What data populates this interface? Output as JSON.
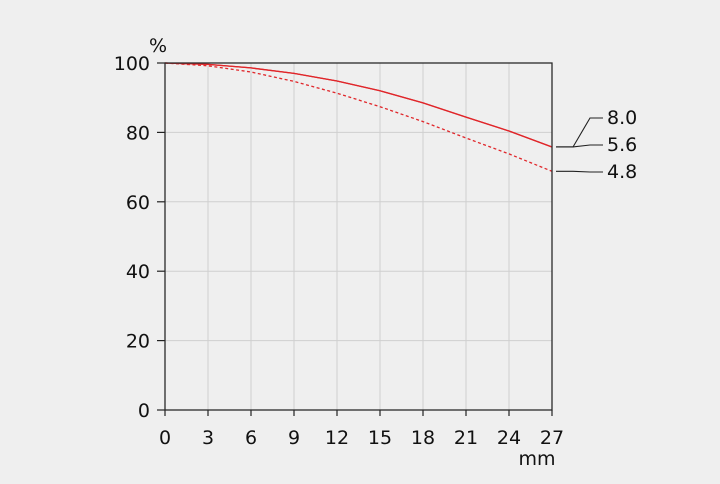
{
  "chart_data": {
    "type": "line",
    "title": "",
    "ylabel": "%",
    "xlabel": "mm",
    "xlim": [
      0,
      27
    ],
    "ylim": [
      0,
      100
    ],
    "x_ticks": [
      0,
      3,
      6,
      9,
      12,
      15,
      18,
      21,
      24,
      27
    ],
    "y_ticks": [
      0,
      20,
      40,
      60,
      80,
      100
    ],
    "grid": true,
    "legend_placement": "right",
    "series": [
      {
        "name": "8.0",
        "color": "#e0262a",
        "style": "solid",
        "x": [
          0,
          3,
          6,
          9,
          12,
          15,
          18,
          21,
          24,
          27
        ],
        "y": [
          100,
          99.6,
          98.6,
          97.0,
          94.8,
          92.0,
          88.5,
          84.4,
          80.4,
          75.8
        ]
      },
      {
        "name": "5.6",
        "color": "#e0262a",
        "style": "solid",
        "x": [
          0,
          3,
          6,
          9,
          12,
          15,
          18,
          21,
          24,
          27
        ],
        "y": [
          100,
          99.6,
          98.6,
          97.0,
          94.8,
          92.0,
          88.5,
          84.4,
          80.4,
          75.8
        ]
      },
      {
        "name": "4.8",
        "color": "#e0262a",
        "style": "dashed",
        "x": [
          0,
          3,
          6,
          9,
          12,
          15,
          18,
          21,
          24,
          27
        ],
        "y": [
          100,
          99.2,
          97.4,
          94.7,
          91.3,
          87.4,
          83.1,
          78.4,
          73.8,
          68.8
        ]
      }
    ]
  }
}
